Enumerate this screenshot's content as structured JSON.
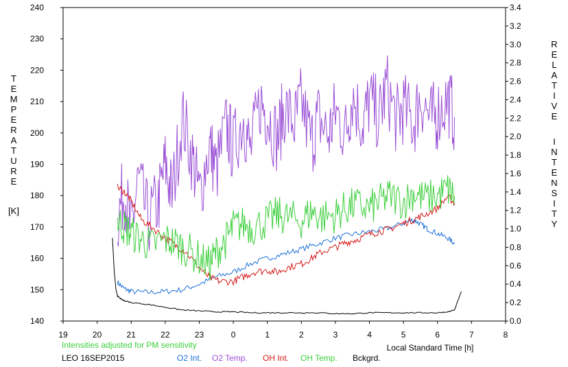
{
  "chart_data": {
    "type": "line",
    "station": "LEO 16SEP2015",
    "note": "Intensities adjusted for PM sensitivity",
    "xlabel": "Local Standard Time [h]",
    "ylabel_left_letters": [
      "T",
      "E",
      "M",
      "P",
      "E",
      "R",
      "A",
      "T",
      "U",
      "R",
      "E"
    ],
    "ylabel_left_unit": "[K]",
    "ylabel_right_word1": [
      "R",
      "E",
      "L",
      "A",
      "T",
      "I",
      "V",
      "E"
    ],
    "ylabel_right_word2": [
      "I",
      "N",
      "T",
      "E",
      "N",
      "S",
      "I",
      "T",
      "Y"
    ],
    "x_ticks": [
      "19",
      "20",
      "21",
      "22",
      "23",
      "0",
      "1",
      "2",
      "3",
      "4",
      "5",
      "6",
      "7",
      "8"
    ],
    "xlim": [
      19,
      32
    ],
    "ylim_left": [
      140,
      240
    ],
    "y_ticks_left": [
      "140",
      "150",
      "160",
      "170",
      "180",
      "190",
      "200",
      "210",
      "220",
      "230",
      "240"
    ],
    "ylim_right": [
      0,
      3.4
    ],
    "y_ticks_right": [
      "0.0",
      "0.2",
      "0.4",
      "0.6",
      "0.8",
      "1.0",
      "1.2",
      "1.4",
      "1.6",
      "1.8",
      "2.0",
      "2.2",
      "2.4",
      "2.6",
      "2.8",
      "3.0",
      "3.2",
      "3.4"
    ],
    "grid": false,
    "series": [
      {
        "name": "O2 Int.",
        "color": "#1a6fd6",
        "axis": "right",
        "x": [
          20.6,
          20.8,
          21.0,
          21.5,
          22.0,
          22.5,
          23.0,
          23.5,
          24.0,
          24.5,
          25.0,
          25.5,
          26.0,
          26.5,
          27.0,
          27.5,
          28.0,
          28.5,
          29.0,
          29.3,
          29.5,
          29.7,
          30.0,
          30.3,
          30.5
        ],
        "y": [
          0.42,
          0.35,
          0.32,
          0.31,
          0.32,
          0.34,
          0.4,
          0.48,
          0.53,
          0.62,
          0.68,
          0.73,
          0.78,
          0.84,
          0.9,
          0.94,
          0.97,
          1.0,
          1.06,
          1.1,
          1.05,
          1.0,
          0.95,
          0.9,
          0.84
        ]
      },
      {
        "name": "O2 Temp.",
        "color": "#9a4fd6",
        "axis": "left",
        "x": [
          20.6,
          20.8,
          21.0,
          21.2,
          21.5,
          21.8,
          22.0,
          22.2,
          22.5,
          22.8,
          23.0,
          23.3,
          23.5,
          23.8,
          24.0,
          24.3,
          24.5,
          24.8,
          25.0,
          25.3,
          25.5,
          25.8,
          26.0,
          26.3,
          26.5,
          26.8,
          27.0,
          27.3,
          27.5,
          27.8,
          28.0,
          28.3,
          28.5,
          28.8,
          29.0,
          29.3,
          29.5,
          29.8,
          30.0,
          30.3,
          30.5
        ],
        "y": [
          173,
          182,
          168,
          185,
          172,
          178,
          190,
          180,
          205,
          192,
          180,
          196,
          188,
          202,
          195,
          205,
          194,
          210,
          206,
          198,
          208,
          203,
          210,
          197,
          205,
          199,
          207,
          200,
          212,
          203,
          210,
          205,
          215,
          204,
          208,
          203,
          212,
          204,
          206,
          211,
          205
        ]
      },
      {
        "name": "OH Int.",
        "color": "#d61a1a",
        "axis": "right",
        "x": [
          20.6,
          20.8,
          21.0,
          21.3,
          21.6,
          22.0,
          22.3,
          22.6,
          23.0,
          23.3,
          23.6,
          24.0,
          24.3,
          24.6,
          25.0,
          25.3,
          25.6,
          26.0,
          26.3,
          26.6,
          27.0,
          27.3,
          27.6,
          28.0,
          28.3,
          28.6,
          29.0,
          29.3,
          29.6,
          30.0,
          30.3,
          30.5
        ],
        "y": [
          1.45,
          1.4,
          1.3,
          1.1,
          1.02,
          0.9,
          0.82,
          0.75,
          0.58,
          0.47,
          0.43,
          0.43,
          0.48,
          0.53,
          0.55,
          0.53,
          0.58,
          0.62,
          0.68,
          0.75,
          0.8,
          0.85,
          0.88,
          0.94,
          0.97,
          1.0,
          1.06,
          1.1,
          1.15,
          1.22,
          1.35,
          1.28
        ]
      },
      {
        "name": "OH Temp.",
        "color": "#3ccf3c",
        "axis": "left",
        "x": [
          20.6,
          20.8,
          21.0,
          21.3,
          21.6,
          22.0,
          22.3,
          22.6,
          23.0,
          23.3,
          23.5,
          23.8,
          24.0,
          24.3,
          24.6,
          25.0,
          25.3,
          25.6,
          26.0,
          26.3,
          26.6,
          27.0,
          27.3,
          27.6,
          28.0,
          28.3,
          28.6,
          29.0,
          29.3,
          29.6,
          30.0,
          30.3,
          30.5
        ],
        "y": [
          172,
          170,
          168,
          166,
          164,
          166,
          165,
          163,
          160,
          158,
          162,
          166,
          170,
          171,
          170,
          172,
          174,
          173,
          172,
          175,
          173,
          174,
          176,
          177,
          176,
          178,
          180,
          178,
          181,
          179,
          180,
          182,
          180
        ]
      },
      {
        "name": "Bckgrd.",
        "color": "#000000",
        "axis": "right",
        "x": [
          20.45,
          20.5,
          20.55,
          20.6,
          20.7,
          20.8,
          21.0,
          21.5,
          22.0,
          22.5,
          23.0,
          23.5,
          24.0,
          24.5,
          25.0,
          25.5,
          26.0,
          26.5,
          27.0,
          27.5,
          28.0,
          28.5,
          29.0,
          29.5,
          30.0,
          30.3,
          30.5,
          30.6,
          30.7
        ],
        "y": [
          0.9,
          0.55,
          0.35,
          0.27,
          0.24,
          0.22,
          0.2,
          0.18,
          0.15,
          0.12,
          0.11,
          0.1,
          0.1,
          0.09,
          0.09,
          0.09,
          0.09,
          0.09,
          0.08,
          0.08,
          0.09,
          0.09,
          0.09,
          0.09,
          0.09,
          0.1,
          0.12,
          0.22,
          0.32
        ]
      }
    ]
  }
}
